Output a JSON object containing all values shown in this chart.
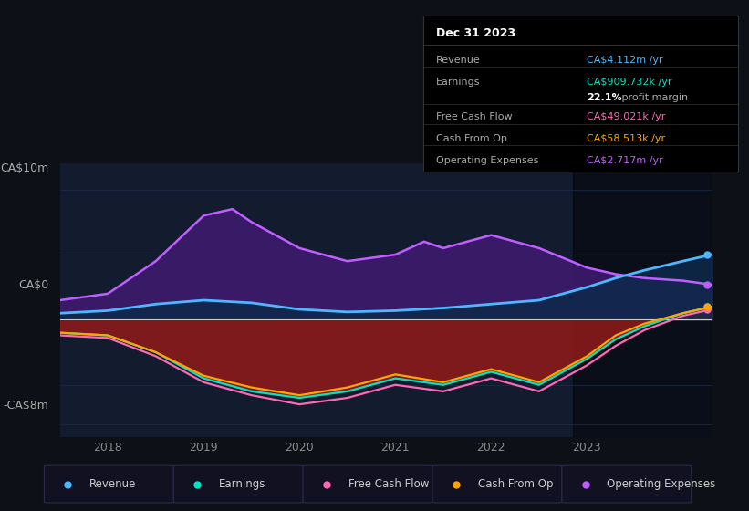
{
  "bg_color": "#0d1117",
  "plot_bg_color": "#131b2e",
  "y_label_top": "CA$10m",
  "y_label_zero": "CA$0",
  "y_label_bottom": "-CA$8m",
  "x_ticks": [
    "2018",
    "2019",
    "2020",
    "2021",
    "2022",
    "2023"
  ],
  "info_box_title": "Dec 31 2023",
  "legend": [
    {
      "label": "Revenue",
      "color": "#4db8ff"
    },
    {
      "label": "Earnings",
      "color": "#00e5c8"
    },
    {
      "label": "Free Cash Flow",
      "color": "#ff69b4"
    },
    {
      "label": "Cash From Op",
      "color": "#ffa500"
    },
    {
      "label": "Operating Expenses",
      "color": "#bf5fff"
    }
  ],
  "x_min": 2017.5,
  "x_max": 2024.3,
  "y_min": -9,
  "y_max": 12,
  "shaded_region_start": 2022.85,
  "revenue_x": [
    2017.5,
    2018,
    2018.5,
    2019,
    2019.5,
    2020,
    2020.5,
    2021,
    2021.5,
    2022,
    2022.5,
    2023,
    2023.3,
    2023.6,
    2024.0,
    2024.3
  ],
  "revenue_y": [
    0.5,
    0.7,
    1.2,
    1.5,
    1.3,
    0.8,
    0.6,
    0.7,
    0.9,
    1.2,
    1.5,
    2.5,
    3.2,
    3.8,
    4.5,
    5.0
  ],
  "earnings_x": [
    2017.5,
    2018,
    2018.5,
    2019,
    2019.5,
    2020,
    2020.5,
    2021,
    2021.5,
    2022,
    2022.5,
    2023,
    2023.3,
    2023.6,
    2024.0,
    2024.3
  ],
  "earnings_y": [
    -1.0,
    -1.2,
    -2.5,
    -4.5,
    -5.5,
    -6.0,
    -5.5,
    -4.5,
    -5.0,
    -4.0,
    -5.0,
    -3.0,
    -1.5,
    -0.5,
    0.5,
    1.0
  ],
  "free_cf_x": [
    2017.5,
    2018,
    2018.5,
    2019,
    2019.5,
    2020,
    2020.5,
    2021,
    2021.5,
    2022,
    2022.5,
    2023,
    2023.3,
    2023.6,
    2024.0,
    2024.3
  ],
  "free_cf_y": [
    -1.2,
    -1.4,
    -2.8,
    -4.8,
    -5.8,
    -6.5,
    -6.0,
    -5.0,
    -5.5,
    -4.5,
    -5.5,
    -3.5,
    -2.0,
    -0.8,
    0.3,
    0.8
  ],
  "cashfromop_x": [
    2017.5,
    2018,
    2018.5,
    2019,
    2019.5,
    2020,
    2020.5,
    2021,
    2021.5,
    2022,
    2022.5,
    2023,
    2023.3,
    2023.6,
    2024.0,
    2024.3
  ],
  "cashfromop_y": [
    -1.0,
    -1.2,
    -2.5,
    -4.3,
    -5.2,
    -5.8,
    -5.2,
    -4.2,
    -4.8,
    -3.8,
    -4.8,
    -2.8,
    -1.2,
    -0.3,
    0.5,
    1.0
  ],
  "opex_x": [
    2017.5,
    2018,
    2018.5,
    2019,
    2019.3,
    2019.5,
    2020,
    2020.5,
    2021,
    2021.3,
    2021.5,
    2022,
    2022.5,
    2023,
    2023.3,
    2023.6,
    2024.0,
    2024.3
  ],
  "opex_y": [
    1.5,
    2.0,
    4.5,
    8.0,
    8.5,
    7.5,
    5.5,
    4.5,
    5.0,
    6.0,
    5.5,
    6.5,
    5.5,
    4.0,
    3.5,
    3.2,
    3.0,
    2.7
  ]
}
